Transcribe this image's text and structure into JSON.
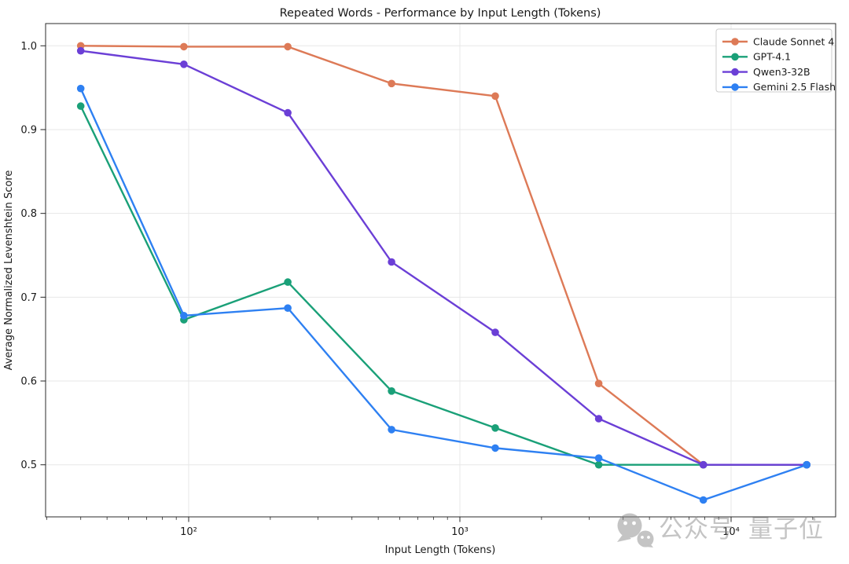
{
  "figure": {
    "watermark": {
      "icon": "wechat-icon",
      "text1": "公众号",
      "text2": "量子位",
      "color": "#8a8a8a"
    }
  },
  "chart_data": {
    "type": "line",
    "title": "Repeated Words - Performance by Input Length (Tokens)",
    "xlabel": "Input Length (Tokens)",
    "ylabel": "Average Normalized Levenshtein Score",
    "x_scale": "log",
    "grid": true,
    "legend_position": "upper right",
    "xlim": [
      30,
      24000
    ],
    "ylim": [
      0.438,
      1.027
    ],
    "x_ticks": [
      {
        "value": 100,
        "label": "10²"
      },
      {
        "value": 1000,
        "label": "10³"
      },
      {
        "value": 10000,
        "label": "10⁴"
      }
    ],
    "y_ticks": [
      {
        "value": 0.5,
        "label": "0.5"
      },
      {
        "value": 0.6,
        "label": "0.6"
      },
      {
        "value": 0.7,
        "label": "0.7"
      },
      {
        "value": 0.8,
        "label": "0.8"
      },
      {
        "value": 0.9,
        "label": "0.9"
      },
      {
        "value": 1.0,
        "label": "1.0"
      }
    ],
    "x": [
      40,
      96,
      232,
      560,
      1350,
      3250,
      7900,
      19000
    ],
    "series": [
      {
        "name": "Claude Sonnet 4",
        "color": "#dd7a57",
        "values": [
          1.0,
          0.999,
          0.999,
          0.955,
          0.94,
          0.597,
          0.5,
          0.5
        ]
      },
      {
        "name": "GPT-4.1",
        "color": "#1aa078",
        "values": [
          0.928,
          0.673,
          0.718,
          0.588,
          0.544,
          0.5,
          0.5,
          0.5
        ]
      },
      {
        "name": "Qwen3-32B",
        "color": "#6b3fd6",
        "values": [
          0.994,
          0.978,
          0.92,
          0.742,
          0.658,
          0.555,
          0.5,
          0.5
        ]
      },
      {
        "name": "Gemini 2.5 Flash",
        "color": "#2e80f2",
        "values": [
          0.949,
          0.678,
          0.687,
          0.542,
          0.52,
          0.508,
          0.458,
          0.5
        ]
      }
    ]
  }
}
